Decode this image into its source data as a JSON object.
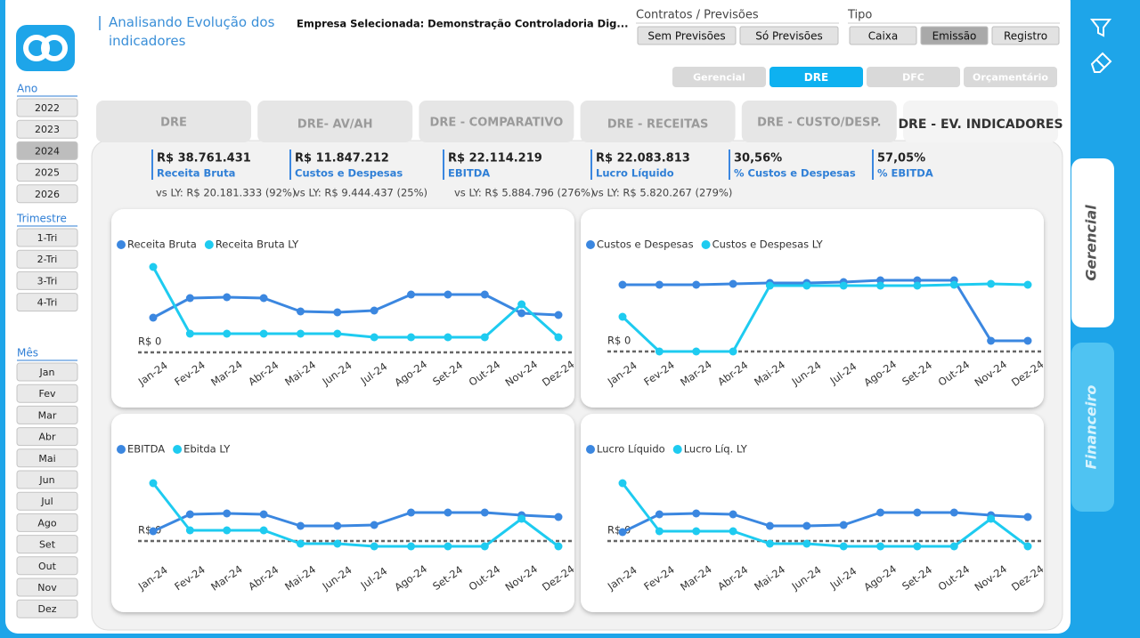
{
  "header": {
    "title": "Analisando Evolução dos indicadores",
    "company": "Empresa Selecionada: Demonstração Controladoria Dig..."
  },
  "filters": {
    "contratos": {
      "label": "Contratos / Previsões",
      "options": [
        "Sem Previsões",
        "Só Previsões"
      ]
    },
    "tipo": {
      "label": "Tipo",
      "options": [
        "Caixa",
        "Emissão",
        "Registro"
      ],
      "selected": "Emissão"
    }
  },
  "nav": {
    "options": [
      "Gerencial",
      "DRE",
      "DFC",
      "Orçamentário"
    ],
    "selected": "DRE"
  },
  "tabs": {
    "options": [
      "DRE",
      "DRE- AV/AH",
      "DRE - COMPARATIVO",
      "DRE - RECEITAS",
      "DRE - CUSTO/DESP.",
      "DRE - EV. INDICADORES"
    ],
    "selected": "DRE - EV. INDICADORES"
  },
  "sidebar": {
    "ano": {
      "label": "Ano",
      "options": [
        "2022",
        "2023",
        "2024",
        "2025",
        "2026"
      ],
      "selected": "2024"
    },
    "trimestre": {
      "label": "Trimestre",
      "options": [
        "1-Tri",
        "2-Tri",
        "3-Tri",
        "4-Tri"
      ]
    },
    "mes": {
      "label": "Mês",
      "options": [
        "Jan",
        "Fev",
        "Mar",
        "Abr",
        "Mai",
        "Jun",
        "Jul",
        "Ago",
        "Set",
        "Out",
        "Nov",
        "Dez"
      ]
    }
  },
  "kpis": [
    {
      "value": "R$ 38.761.431",
      "label": "Receita Bruta",
      "comparison": "vs LY: R$ 20.181.333 (92%)"
    },
    {
      "value": "R$ 11.847.212",
      "label": "Custos e Despesas",
      "comparison": "vs LY: R$ 9.444.437 (25%)"
    },
    {
      "value": "R$ 22.114.219",
      "label": "EBITDA",
      "comparison": "vs LY: R$ 5.884.796 (276%)"
    },
    {
      "value": "R$ 22.083.813",
      "label": "Lucro Líquido",
      "comparison": "vs LY: R$ 5.820.267 (279%)"
    },
    {
      "value": "30,56%",
      "label": "% Custos e Despesas"
    },
    {
      "value": "57,05%",
      "label": "% EBITDA"
    }
  ],
  "side_tabs": {
    "options": [
      "Gerencial",
      "Financeiro"
    ],
    "selected": "Gerencial"
  },
  "chart_data": [
    {
      "type": "line",
      "categories": [
        "Jan-24",
        "Fev-24",
        "Mar-24",
        "Abr-24",
        "Mai-24",
        "Jun-24",
        "Jul-24",
        "Ago-24",
        "Set-24",
        "Out-24",
        "Nov-24",
        "Dez-24"
      ],
      "series": [
        {
          "name": "Receita Bruta",
          "color": "#3b87e0",
          "values": [
            2340000,
            3660000,
            3720000,
            3660000,
            2760000,
            2700000,
            2820000,
            3900000,
            3900000,
            3900000,
            2640000,
            2520000
          ]
        },
        {
          "name": "Receita Bruta LY",
          "color": "#1ecbf0",
          "values": [
            5760000,
            1260000,
            1260000,
            1260000,
            1260000,
            1260000,
            1020000,
            1020000,
            1020000,
            1020000,
            3240000,
            1020000
          ]
        }
      ],
      "ylim": [
        -540000,
        6060000
      ],
      "zero_line": {
        "value": 0,
        "label": "R$ 0"
      }
    },
    {
      "type": "line",
      "categories": [
        "Jan-24",
        "Fev-24",
        "Mar-24",
        "Abr-24",
        "Mai-24",
        "Jun-24",
        "Jul-24",
        "Ago-24",
        "Set-24",
        "Out-24",
        "Nov-24",
        "Dez-24"
      ],
      "series": [
        {
          "name": "Custos e Despesas",
          "color": "#3b87e0",
          "values": [
            1125000,
            1125000,
            1125000,
            1140000,
            1155000,
            1155000,
            1170000,
            1200000,
            1200000,
            1200000,
            180000,
            180000
          ]
        },
        {
          "name": "Custos e Despesas LY",
          "color": "#1ecbf0",
          "values": [
            585000,
            0,
            0,
            0,
            1110000,
            1110000,
            1110000,
            1110000,
            1110000,
            1125000,
            1140000,
            1125000
          ]
        }
      ],
      "ylim": [
        -150000,
        1500000
      ],
      "zero_line": {
        "value": 0,
        "label": "R$ 0"
      }
    },
    {
      "type": "line",
      "categories": [
        "Jan-24",
        "Fev-24",
        "Mar-24",
        "Abr-24",
        "Mai-24",
        "Jun-24",
        "Jul-24",
        "Ago-24",
        "Set-24",
        "Out-24",
        "Nov-24",
        "Dez-24"
      ],
      "series": [
        {
          "name": "EBITDA",
          "color": "#3b87e0",
          "values": [
            792000,
            2160000,
            2232000,
            2160000,
            1224000,
            1224000,
            1296000,
            2304000,
            2304000,
            2304000,
            2088000,
            1944000
          ]
        },
        {
          "name": "Ebitda LY",
          "color": "#1ecbf0",
          "values": [
            4680000,
            864000,
            864000,
            864000,
            -216000,
            -216000,
            -432000,
            -432000,
            -432000,
            -432000,
            1800000,
            -432000
          ]
        }
      ],
      "ylim": [
        -1944000,
        5976000
      ],
      "zero_line": {
        "value": 0,
        "label": "R$ 0"
      }
    },
    {
      "type": "line",
      "categories": [
        "Jan-24",
        "Fev-24",
        "Mar-24",
        "Abr-24",
        "Mai-24",
        "Jun-24",
        "Jul-24",
        "Ago-24",
        "Set-24",
        "Out-24",
        "Nov-24",
        "Dez-24"
      ],
      "series": [
        {
          "name": "Lucro Líquido",
          "color": "#3b87e0",
          "values": [
            720000,
            2160000,
            2232000,
            2160000,
            1224000,
            1224000,
            1296000,
            2304000,
            2304000,
            2304000,
            2088000,
            1944000
          ]
        },
        {
          "name": "Lucro Líq. LY",
          "color": "#1ecbf0",
          "values": [
            4680000,
            792000,
            792000,
            792000,
            -216000,
            -216000,
            -432000,
            -432000,
            -432000,
            -432000,
            1800000,
            -432000
          ]
        }
      ],
      "ylim": [
        -1944000,
        5976000
      ],
      "zero_line": {
        "value": 0,
        "label": "R$ 0"
      }
    }
  ]
}
